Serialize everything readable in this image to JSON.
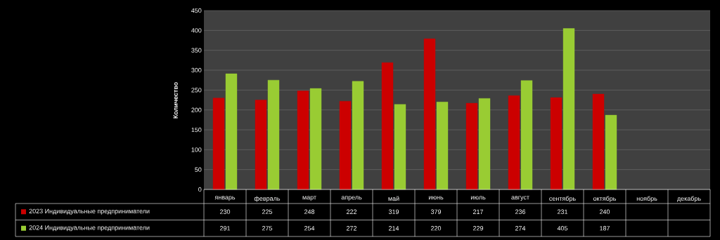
{
  "chart_data": {
    "type": "bar",
    "ylabel": "Количество",
    "categories": [
      "январь",
      "февраль",
      "март",
      "апрель",
      "май",
      "июнь",
      "июль",
      "август",
      "сентябрь",
      "октябрь",
      "ноябрь",
      "декабрь"
    ],
    "series": [
      {
        "name": "2023 Индивидуальные предприниматели",
        "color": "#cc0000",
        "values": [
          230,
          225,
          248,
          222,
          319,
          379,
          217,
          236,
          231,
          240,
          null,
          null
        ]
      },
      {
        "name": "2024 Индивидуальные предприниматели",
        "color": "#99cc33",
        "values": [
          291,
          275,
          254,
          272,
          214,
          220,
          229,
          274,
          405,
          187,
          null,
          null
        ]
      }
    ],
    "ylim": [
      0,
      450
    ],
    "yticks": [
      0,
      50,
      100,
      150,
      200,
      250,
      300,
      350,
      400,
      450
    ],
    "grid": "y",
    "legend": "bottom",
    "data_labels": true
  }
}
